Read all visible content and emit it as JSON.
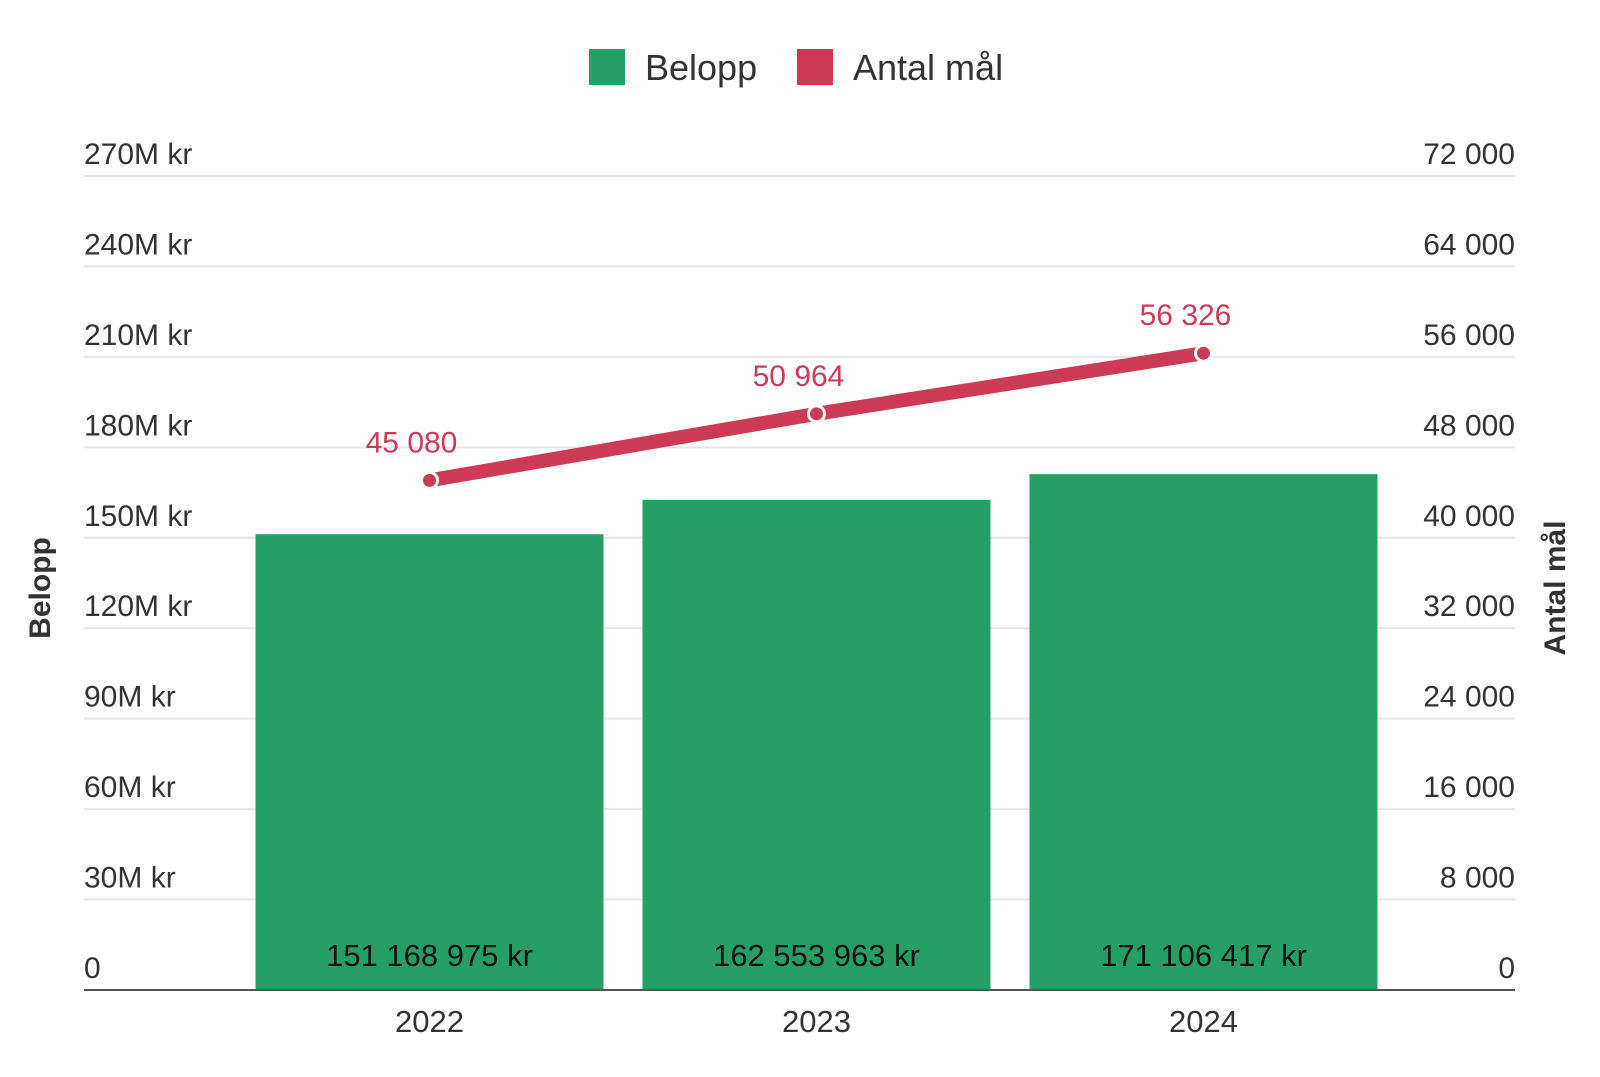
{
  "chart_data": {
    "type": "bar",
    "categories": [
      "2022",
      "2023",
      "2024"
    ],
    "series": [
      {
        "name": "Belopp",
        "type": "bar",
        "axis": "left",
        "color": "#259f66",
        "values": [
          151168975,
          162553963,
          171106417
        ],
        "labels": [
          "151 168 975 kr",
          "162 553 963 kr",
          "171 106 417 kr"
        ]
      },
      {
        "name": "Antal mål",
        "type": "line",
        "axis": "right",
        "color": "#cc3a56",
        "values": [
          45080,
          50964,
          56326
        ],
        "labels": [
          "45 080",
          "50 964",
          "56 326"
        ]
      }
    ],
    "ylabel": "Belopp",
    "y2label": "Antal mål",
    "ylim": [
      0,
      270000000
    ],
    "y2lim": [
      0,
      72000
    ],
    "yticks": [
      0,
      30000000,
      60000000,
      90000000,
      120000000,
      150000000,
      180000000,
      210000000,
      240000000,
      270000000
    ],
    "ytick_labels": [
      "0",
      "30M kr",
      "60M kr",
      "90M kr",
      "120M kr",
      "150M kr",
      "180M kr",
      "210M kr",
      "240M kr",
      "270M kr"
    ],
    "y2ticks": [
      0,
      8000,
      16000,
      24000,
      32000,
      40000,
      48000,
      56000,
      64000,
      72000
    ],
    "y2tick_labels": [
      "0",
      "8 000",
      "16 000",
      "24 000",
      "32 000",
      "40 000",
      "48 000",
      "56 000",
      "64 000",
      "72 000"
    ],
    "grid": true,
    "legend": "top-center"
  }
}
